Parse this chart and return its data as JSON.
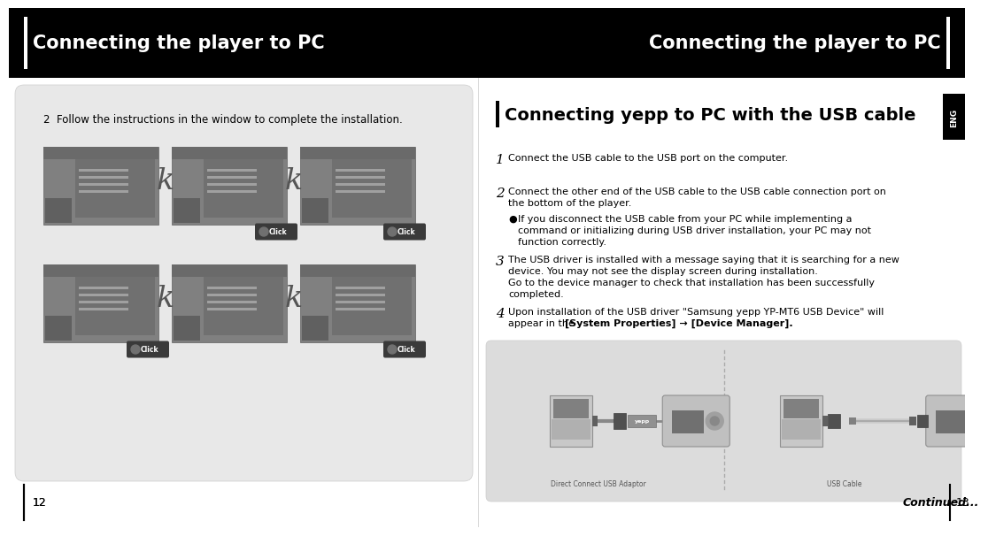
{
  "bg_color": "#ffffff",
  "header_bg": "#000000",
  "header_text_color": "#ffffff",
  "header_text_left": "Connecting the player to PC",
  "header_text_right": "Connecting the player to PC",
  "header_bar_color": "#ffffff",
  "left_panel_bg": "#e8e8e8",
  "left_step2_text": "2  Follow the instructions in the window to complete the installation.",
  "section_title_bar": "#000000",
  "section_title": "Connecting yepp to PC with the USB cable",
  "step1": "Connect the USB cable to the USB port on the computer.",
  "step2_line1": "Connect the other end of the USB cable to the USB cable connection port on",
  "step2_line2": "the bottom of the player.",
  "bullet_line1": "If you disconnect the USB cable from your PC while implementing a",
  "bullet_line2": "command or initializing during USB driver installation, your PC may not",
  "bullet_line3": "function correctly.",
  "step3_line1": "The USB driver is installed with a message saying that it is searching for a new",
  "step3_line2": "device. You may not see the display screen during installation.",
  "step3_line3": "Go to the device manager to check that installation has been successfully",
  "step3_line4": "completed.",
  "step4_line1": "Upon installation of the USB driver \"Samsung yepp YP-MT6 USB Device\" will",
  "step4_line2a": "appear in the ",
  "step4_line2b": "[System Properties] → [Device Manager]",
  "step4_line2c": ".",
  "page_left": "12",
  "page_right": "13",
  "continued_text": "Continued...",
  "eng_tab_text": "ENG",
  "diagram_bg": "#e0e0e0",
  "left_caption": "Direct Connect USB Adaptor",
  "right_caption": "USB Cable",
  "header_fontsize": 15,
  "title_fontsize": 14,
  "body_fontsize": 8.0,
  "num_fontsize": 11
}
